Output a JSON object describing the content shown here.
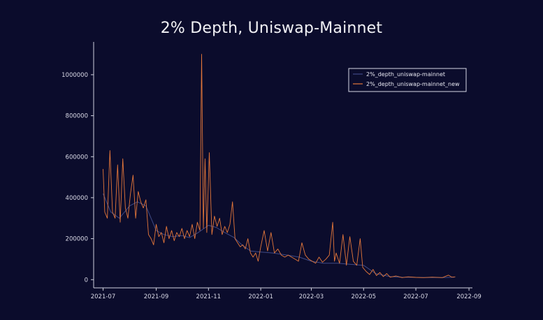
{
  "chart_data": {
    "type": "line",
    "title": "2% Depth, Uniswap-Mainnet",
    "xlabel": "",
    "ylabel": "",
    "xlim": [
      "2021-06-20",
      "2022-09-05"
    ],
    "ylim": [
      -40000,
      1160000
    ],
    "x_ticks": [
      "2021-07",
      "2021-09",
      "2021-11",
      "2022-01",
      "2022-03",
      "2022-05",
      "2022-07",
      "2022-09"
    ],
    "y_ticks": [
      0,
      200000,
      400000,
      600000,
      800000,
      1000000
    ],
    "y_tick_labels": [
      "0",
      "200000",
      "400000",
      "600000",
      "800000",
      "1000000"
    ],
    "grid": false,
    "legend_position": "top-right",
    "series": [
      {
        "name": "2%_depth_uniswap-mainnet",
        "color": "#3f4a86",
        "x": [
          "2021-07-01",
          "2021-07-10",
          "2021-07-20",
          "2021-08-01",
          "2021-08-10",
          "2021-08-20",
          "2021-09-01",
          "2021-09-10",
          "2021-09-20",
          "2021-10-01",
          "2021-10-10",
          "2021-10-20",
          "2021-11-01",
          "2021-11-10",
          "2021-11-20",
          "2021-12-01",
          "2021-12-10",
          "2021-12-20",
          "2022-01-01",
          "2022-01-15",
          "2022-02-01",
          "2022-02-15",
          "2022-03-01",
          "2022-03-15",
          "2022-04-01",
          "2022-04-15",
          "2022-05-01",
          "2022-05-15",
          "2022-06-01",
          "2022-06-15",
          "2022-07-01",
          "2022-07-15",
          "2022-08-01",
          "2022-08-15"
        ],
        "values": [
          420000,
          330000,
          300000,
          360000,
          380000,
          360000,
          240000,
          220000,
          210000,
          215000,
          205000,
          230000,
          265000,
          255000,
          230000,
          205000,
          170000,
          140000,
          135000,
          130000,
          120000,
          110000,
          90000,
          80000,
          80000,
          75000,
          70000,
          30000,
          15000,
          12000,
          11000,
          10000,
          10000,
          12000
        ]
      },
      {
        "name": "2%_depth_uniswap-mainnet_new",
        "color": "#e4773a",
        "x": [
          "2021-07-01",
          "2021-07-03",
          "2021-07-06",
          "2021-07-09",
          "2021-07-12",
          "2021-07-15",
          "2021-07-18",
          "2021-07-21",
          "2021-07-24",
          "2021-07-27",
          "2021-07-30",
          "2021-08-02",
          "2021-08-05",
          "2021-08-08",
          "2021-08-11",
          "2021-08-14",
          "2021-08-17",
          "2021-08-20",
          "2021-08-23",
          "2021-08-26",
          "2021-08-29",
          "2021-09-01",
          "2021-09-04",
          "2021-09-07",
          "2021-09-10",
          "2021-09-13",
          "2021-09-16",
          "2021-09-19",
          "2021-09-22",
          "2021-09-25",
          "2021-09-28",
          "2021-10-01",
          "2021-10-04",
          "2021-10-07",
          "2021-10-10",
          "2021-10-13",
          "2021-10-16",
          "2021-10-19",
          "2021-10-22",
          "2021-10-24",
          "2021-10-26",
          "2021-10-28",
          "2021-10-30",
          "2021-11-02",
          "2021-11-05",
          "2021-11-08",
          "2021-11-11",
          "2021-11-14",
          "2021-11-17",
          "2021-11-20",
          "2021-11-23",
          "2021-11-26",
          "2021-11-29",
          "2021-12-02",
          "2021-12-05",
          "2021-12-08",
          "2021-12-11",
          "2021-12-14",
          "2021-12-17",
          "2021-12-20",
          "2021-12-23",
          "2021-12-26",
          "2021-12-29",
          "2022-01-01",
          "2022-01-05",
          "2022-01-09",
          "2022-01-13",
          "2022-01-17",
          "2022-01-21",
          "2022-01-25",
          "2022-01-29",
          "2022-02-02",
          "2022-02-06",
          "2022-02-10",
          "2022-02-14",
          "2022-02-18",
          "2022-02-22",
          "2022-02-26",
          "2022-03-02",
          "2022-03-06",
          "2022-03-10",
          "2022-03-14",
          "2022-03-18",
          "2022-03-22",
          "2022-03-26",
          "2022-03-28",
          "2022-03-30",
          "2022-04-03",
          "2022-04-07",
          "2022-04-11",
          "2022-04-15",
          "2022-04-19",
          "2022-04-23",
          "2022-04-27",
          "2022-04-30",
          "2022-05-04",
          "2022-05-08",
          "2022-05-12",
          "2022-05-16",
          "2022-05-20",
          "2022-05-24",
          "2022-05-28",
          "2022-06-01",
          "2022-06-08",
          "2022-06-15",
          "2022-06-22",
          "2022-07-01",
          "2022-07-10",
          "2022-07-20",
          "2022-08-01",
          "2022-08-08",
          "2022-08-12",
          "2022-08-16"
        ],
        "values": [
          540000,
          330000,
          300000,
          630000,
          330000,
          300000,
          560000,
          280000,
          590000,
          350000,
          300000,
          420000,
          510000,
          300000,
          430000,
          380000,
          350000,
          390000,
          220000,
          200000,
          170000,
          270000,
          210000,
          230000,
          180000,
          260000,
          200000,
          240000,
          190000,
          230000,
          210000,
          250000,
          200000,
          240000,
          210000,
          270000,
          200000,
          280000,
          240000,
          1100000,
          250000,
          590000,
          230000,
          620000,
          220000,
          310000,
          260000,
          300000,
          220000,
          260000,
          230000,
          270000,
          380000,
          200000,
          180000,
          160000,
          170000,
          150000,
          200000,
          130000,
          110000,
          130000,
          90000,
          160000,
          240000,
          140000,
          230000,
          130000,
          150000,
          120000,
          110000,
          120000,
          110000,
          100000,
          90000,
          180000,
          120000,
          100000,
          90000,
          80000,
          110000,
          85000,
          100000,
          120000,
          280000,
          90000,
          130000,
          80000,
          220000,
          70000,
          210000,
          90000,
          70000,
          200000,
          60000,
          40000,
          25000,
          50000,
          20000,
          35000,
          15000,
          30000,
          12000,
          18000,
          10000,
          14000,
          11000,
          10000,
          12000,
          10000,
          22000,
          12000,
          14000
        ]
      }
    ]
  }
}
